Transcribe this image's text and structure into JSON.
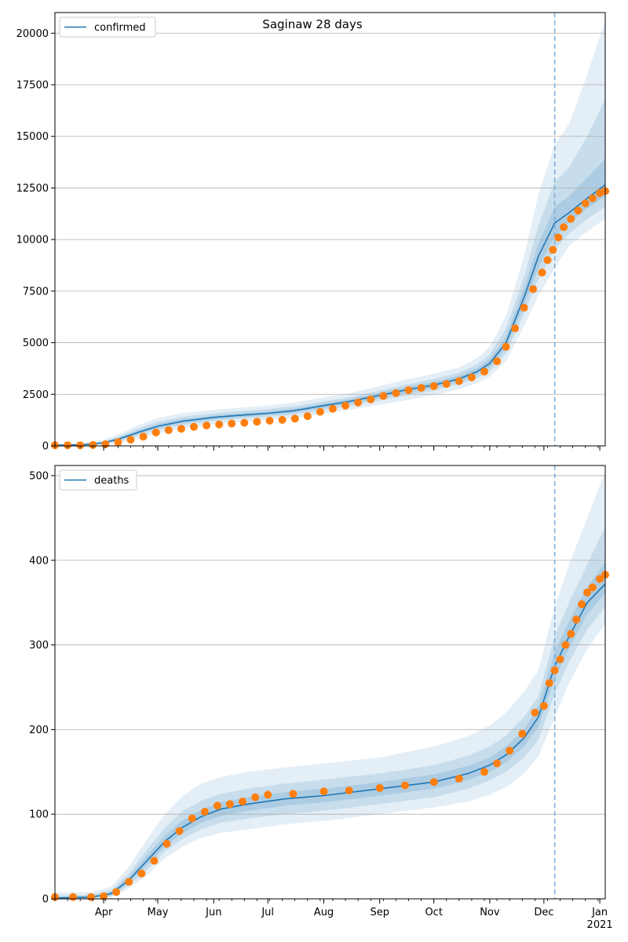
{
  "title": "Saginaw 28 days",
  "colors": {
    "model_line": "#1f77b4",
    "observed_points": "#ff7f0e",
    "band": "#1f77b4",
    "vline": "#7fb0d8",
    "grid": "#b0b0b0"
  },
  "x_axis": {
    "tick_labels": [
      "Apr",
      "May",
      "Jun",
      "Jul",
      "Aug",
      "Sep",
      "Oct",
      "Nov",
      "Dec",
      "Jan"
    ],
    "year_label": "2021",
    "start": "2020-03-05",
    "end": "2021-01-04",
    "forecast_date": "2020-12-07"
  },
  "chart_data": [
    {
      "type": "line",
      "legend": "confirmed",
      "legend_position": "top-left",
      "grid": "horizontal",
      "ylim": [
        0,
        21000
      ],
      "y_ticks": [
        0,
        2500,
        5000,
        7500,
        10000,
        12500,
        15000,
        17500,
        20000
      ],
      "model": {
        "dates": [
          "2020-03-05",
          "2020-03-20",
          "2020-04-01",
          "2020-04-10",
          "2020-04-20",
          "2020-05-01",
          "2020-05-15",
          "2020-06-01",
          "2020-06-15",
          "2020-07-01",
          "2020-07-15",
          "2020-08-01",
          "2020-08-15",
          "2020-09-01",
          "2020-09-15",
          "2020-10-01",
          "2020-10-15",
          "2020-10-25",
          "2020-11-01",
          "2020-11-10",
          "2020-11-20",
          "2020-11-28",
          "2020-12-07",
          "2020-12-15",
          "2020-12-25",
          "2021-01-04"
        ],
        "values": [
          30,
          50,
          150,
          350,
          650,
          950,
          1200,
          1380,
          1480,
          1580,
          1700,
          1950,
          2150,
          2450,
          2700,
          2950,
          3250,
          3600,
          4000,
          5000,
          7200,
          9200,
          10800,
          11300,
          12000,
          12650
        ],
        "bands": [
          {
            "lower": [
              0,
              0,
              40,
              150,
              350,
              600,
              850,
              1050,
              1150,
              1250,
              1350,
              1550,
              1750,
              2000,
              2200,
              2450,
              2750,
              3050,
              3350,
              4100,
              5800,
              7300,
              8600,
              9700,
              10400,
              11000
            ],
            "upper": [
              100,
              130,
              300,
              600,
              1000,
              1350,
              1600,
              1750,
              1850,
              1950,
              2100,
              2350,
              2550,
              2900,
              3200,
              3500,
              3800,
              4250,
              4800,
              6300,
              9200,
              12200,
              14600,
              15600,
              18000,
              20600
            ]
          },
          {
            "lower": [
              10,
              20,
              90,
              240,
              480,
              760,
              1000,
              1200,
              1300,
              1400,
              1500,
              1730,
              1930,
              2200,
              2420,
              2670,
              2980,
              3300,
              3620,
              4480,
              6400,
              8100,
              9500,
              10300,
              11000,
              11600
            ],
            "upper": [
              70,
              95,
              220,
              480,
              840,
              1170,
              1420,
              1580,
              1680,
              1780,
              1920,
              2160,
              2360,
              2680,
              2960,
              3240,
              3550,
              3950,
              4430,
              5700,
              8200,
              10700,
              12800,
              13500,
              15000,
              16800
            ]
          },
          {
            "lower": [
              20,
              35,
              120,
              300,
              570,
              860,
              1100,
              1290,
              1390,
              1490,
              1600,
              1840,
              2040,
              2320,
              2560,
              2810,
              3110,
              3450,
              3800,
              4740,
              6800,
              8650,
              10150,
              10800,
              11500,
              12100
            ],
            "upper": [
              45,
              70,
              185,
              410,
              740,
              1050,
              1300,
              1470,
              1570,
              1670,
              1800,
              2060,
              2260,
              2580,
              2840,
              3100,
              3400,
              3770,
              4210,
              5300,
              7650,
              9800,
              11600,
              12100,
              13000,
              13900
            ]
          }
        ]
      },
      "observed": {
        "dates": [
          "2020-03-05",
          "2020-03-12",
          "2020-03-19",
          "2020-03-26",
          "2020-04-02",
          "2020-04-09",
          "2020-04-16",
          "2020-04-23",
          "2020-04-30",
          "2020-05-07",
          "2020-05-14",
          "2020-05-21",
          "2020-05-28",
          "2020-06-04",
          "2020-06-11",
          "2020-06-18",
          "2020-06-25",
          "2020-07-02",
          "2020-07-09",
          "2020-07-16",
          "2020-07-23",
          "2020-07-30",
          "2020-08-06",
          "2020-08-13",
          "2020-08-20",
          "2020-08-27",
          "2020-09-03",
          "2020-09-10",
          "2020-09-17",
          "2020-09-24",
          "2020-10-01",
          "2020-10-08",
          "2020-10-15",
          "2020-10-22",
          "2020-10-29",
          "2020-11-05",
          "2020-11-10",
          "2020-11-15",
          "2020-11-20",
          "2020-11-25",
          "2020-11-30",
          "2020-12-03",
          "2020-12-06",
          "2020-12-09",
          "2020-12-12",
          "2020-12-16",
          "2020-12-20",
          "2020-12-24",
          "2020-12-28",
          "2021-01-01",
          "2021-01-04"
        ],
        "values": [
          30,
          30,
          30,
          40,
          80,
          180,
          300,
          450,
          650,
          760,
          830,
          920,
          990,
          1040,
          1080,
          1120,
          1170,
          1220,
          1260,
          1320,
          1440,
          1650,
          1800,
          1950,
          2100,
          2250,
          2420,
          2560,
          2700,
          2810,
          2900,
          3000,
          3140,
          3320,
          3600,
          4100,
          4800,
          5700,
          6700,
          7600,
          8400,
          9000,
          9500,
          10100,
          10600,
          11000,
          11400,
          11750,
          12000,
          12250,
          12350
        ]
      }
    },
    {
      "type": "line",
      "legend": "deaths",
      "legend_position": "top-left",
      "grid": "horizontal",
      "ylim": [
        0,
        512
      ],
      "y_ticks": [
        0,
        100,
        200,
        300,
        400,
        500
      ],
      "model": {
        "dates": [
          "2020-03-05",
          "2020-03-25",
          "2020-04-05",
          "2020-04-15",
          "2020-04-25",
          "2020-05-05",
          "2020-05-15",
          "2020-05-25",
          "2020-06-05",
          "2020-06-20",
          "2020-07-10",
          "2020-08-01",
          "2020-09-01",
          "2020-10-01",
          "2020-10-20",
          "2020-11-01",
          "2020-11-10",
          "2020-11-20",
          "2020-11-28",
          "2020-12-07",
          "2020-12-15",
          "2020-12-25",
          "2021-01-04"
        ],
        "values": [
          1,
          2,
          6,
          22,
          45,
          68,
          85,
          97,
          106,
          112,
          118,
          122,
          130,
          138,
          148,
          158,
          170,
          190,
          215,
          275,
          310,
          350,
          372
        ],
        "bands": [
          {
            "lower": [
              0,
              0,
              2,
              12,
              28,
              48,
              62,
              72,
              78,
              82,
              88,
              92,
              100,
              108,
              115,
              123,
              132,
              148,
              168,
              215,
              255,
              295,
              325
            ],
            "upper": [
              8,
              8,
              14,
              38,
              70,
              100,
              122,
              136,
              144,
              150,
              155,
              160,
              167,
              180,
              192,
              205,
              220,
              245,
              270,
              345,
              395,
              450,
              505
            ]
          },
          {
            "lower": [
              0,
              1,
              3,
              16,
              34,
              56,
              71,
              82,
              90,
              95,
              100,
              104,
              112,
              120,
              130,
              140,
              150,
              167,
              188,
              242,
              280,
              318,
              345
            ],
            "upper": [
              4,
              5,
              10,
              30,
              58,
              84,
              104,
              116,
              124,
              130,
              136,
              141,
              148,
              158,
              169,
              180,
              193,
              215,
              240,
              310,
              350,
              395,
              440
            ]
          },
          {
            "lower": [
              0,
              1,
              4,
              19,
              40,
              62,
              78,
              90,
              98,
              104,
              110,
              114,
              122,
              130,
              140,
              150,
              161,
              180,
              203,
              260,
              296,
              336,
              362
            ],
            "upper": [
              2,
              3,
              8,
              26,
              51,
              75,
              93,
              105,
              114,
              120,
              126,
              130,
              138,
              147,
              157,
              167,
              180,
              200,
              228,
              292,
              328,
              368,
              398
            ]
          }
        ]
      },
      "observed": {
        "dates": [
          "2020-03-05",
          "2020-03-15",
          "2020-03-25",
          "2020-04-01",
          "2020-04-08",
          "2020-04-15",
          "2020-04-22",
          "2020-04-29",
          "2020-05-06",
          "2020-05-13",
          "2020-05-20",
          "2020-05-27",
          "2020-06-03",
          "2020-06-10",
          "2020-06-17",
          "2020-06-24",
          "2020-07-01",
          "2020-07-15",
          "2020-08-01",
          "2020-08-15",
          "2020-09-01",
          "2020-09-15",
          "2020-10-01",
          "2020-10-15",
          "2020-10-29",
          "2020-11-05",
          "2020-11-12",
          "2020-11-19",
          "2020-11-26",
          "2020-12-01",
          "2020-12-04",
          "2020-12-07",
          "2020-12-10",
          "2020-12-13",
          "2020-12-16",
          "2020-12-19",
          "2020-12-22",
          "2020-12-25",
          "2020-12-28",
          "2021-01-01",
          "2021-01-04"
        ],
        "values": [
          2,
          2,
          2,
          3,
          8,
          20,
          30,
          45,
          65,
          80,
          95,
          103,
          110,
          112,
          115,
          120,
          123,
          124,
          127,
          128,
          131,
          134,
          138,
          142,
          150,
          160,
          175,
          195,
          220,
          228,
          255,
          270,
          283,
          300,
          313,
          330,
          348,
          362,
          368,
          378,
          383
        ]
      }
    }
  ]
}
